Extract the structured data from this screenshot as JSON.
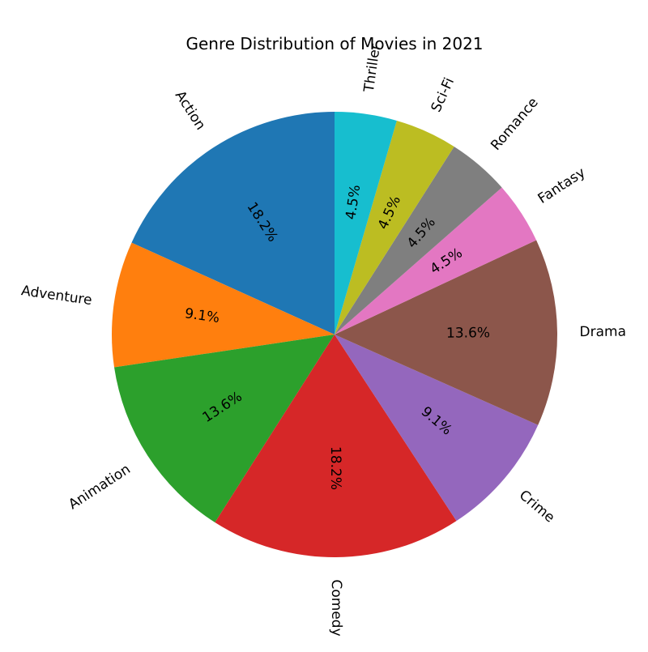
{
  "chart_data": {
    "type": "pie",
    "title": "Genre Distribution of Movies in 2021",
    "categories": [
      "Action",
      "Adventure",
      "Animation",
      "Comedy",
      "Crime",
      "Drama",
      "Fantasy",
      "Romance",
      "Sci-Fi",
      "Thriller"
    ],
    "values": [
      18.2,
      9.1,
      13.6,
      18.2,
      9.1,
      13.6,
      4.5,
      4.5,
      4.5,
      4.5
    ],
    "value_labels": [
      "18.2%",
      "9.1%",
      "13.6%",
      "18.2%",
      "9.1%",
      "13.6%",
      "4.5%",
      "4.5%",
      "4.5%",
      "4.5%"
    ],
    "colors": [
      "#1f77b4",
      "#ff7f0e",
      "#2ca02c",
      "#d62728",
      "#9467bd",
      "#8c564b",
      "#e377c2",
      "#7f7f7f",
      "#bcbd22",
      "#17becf"
    ],
    "start_angle_deg": 90,
    "direction": "counterclockwise",
    "legend": "none"
  }
}
